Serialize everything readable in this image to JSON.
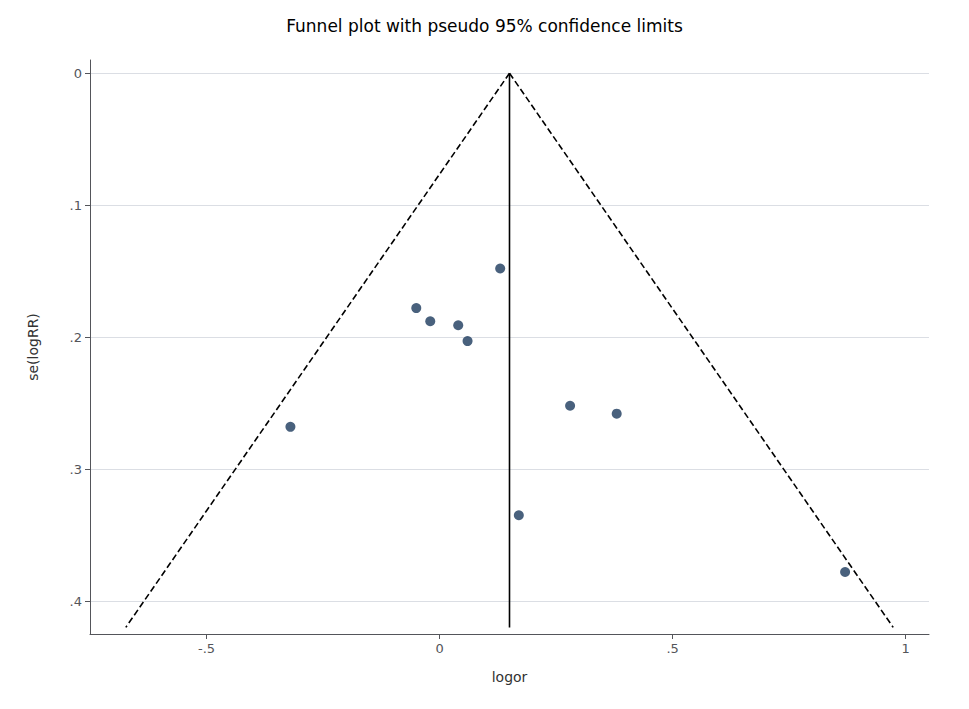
{
  "chart_data": {
    "type": "scatter",
    "title": "Funnel plot with pseudo 95% confidence limits",
    "xlabel": "logor",
    "ylabel": "se(logRR)",
    "xlim": [
      -0.75,
      1.05
    ],
    "ylim": [
      0.425,
      -0.01
    ],
    "xticks": [
      {
        "value": -0.5,
        "label": "-.5"
      },
      0,
      {
        "value": 0.5,
        "label": ".5"
      },
      1
    ],
    "yticks": [
      0,
      {
        "value": 0.1,
        "label": ".1"
      },
      {
        "value": 0.2,
        "label": ".2"
      },
      {
        "value": 0.3,
        "label": ".3"
      },
      {
        "value": 0.4,
        "label": ".4"
      }
    ],
    "grid": true,
    "series": [
      {
        "type": "line",
        "color": "black",
        "line_style": "dashed",
        "x": [
          0.15,
          -0.6732
        ],
        "values": [
          0,
          0.42
        ]
      },
      {
        "type": "line",
        "color": "black",
        "line_style": "dashed",
        "x": [
          0.15,
          0.9732
        ],
        "values": [
          0,
          0.42
        ]
      },
      {
        "type": "line",
        "color": "black",
        "line_style": "solid",
        "x": [
          0.15,
          0.15
        ],
        "values": [
          0,
          0.42
        ]
      },
      {
        "type": "scatter",
        "color": "#1b3a5c",
        "marker": "circle",
        "x": [
          0.13,
          -0.05,
          -0.02,
          0.04,
          0.06,
          -0.32,
          0.28,
          0.38,
          0.17,
          0.87
        ],
        "values": [
          0.148,
          0.178,
          0.188,
          0.191,
          0.203,
          0.268,
          0.252,
          0.258,
          0.335,
          0.378
        ]
      }
    ]
  }
}
